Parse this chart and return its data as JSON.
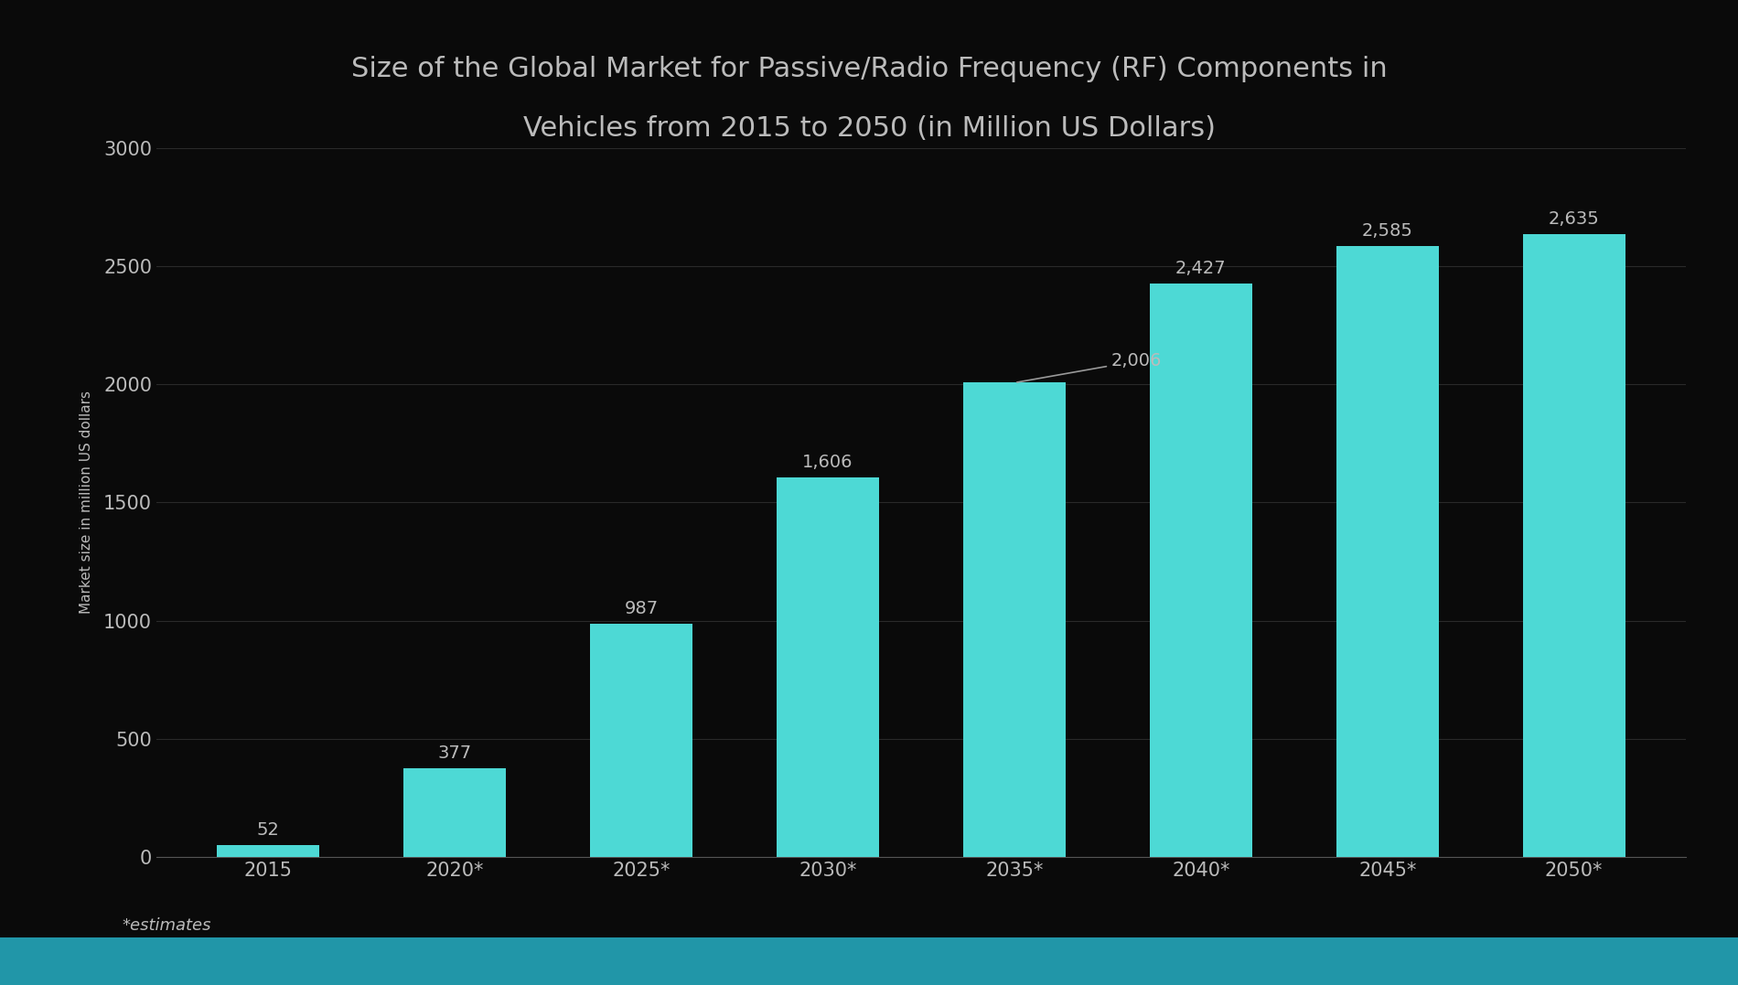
{
  "title_line1": "Size of the Global Market for Passive/Radio Frequency (RF) Components in",
  "title_line2": "Vehicles from 2015 to 2050 (in Million US Dollars)",
  "categories": [
    "2015",
    "2020*",
    "2025*",
    "2030*",
    "2035*",
    "2040*",
    "2045*",
    "2050*"
  ],
  "values": [
    52,
    377,
    987,
    1606,
    2006,
    2427,
    2585,
    2635
  ],
  "bar_color": "#4DD9D5",
  "background_color": "#0A0A0A",
  "text_color": "#BBBBBB",
  "ylabel": "Market size in million US dollars",
  "ylim": [
    0,
    3000
  ],
  "yticks": [
    0,
    500,
    1000,
    1500,
    2000,
    2500,
    3000
  ],
  "footer_note": "*estimates",
  "footer_bar_color": "#2196A8",
  "annotation_line_color": "#999999",
  "title_fontsize": 22,
  "axis_label_fontsize": 11,
  "tick_fontsize": 15,
  "bar_label_fontsize": 14,
  "footer_fontsize": 13
}
